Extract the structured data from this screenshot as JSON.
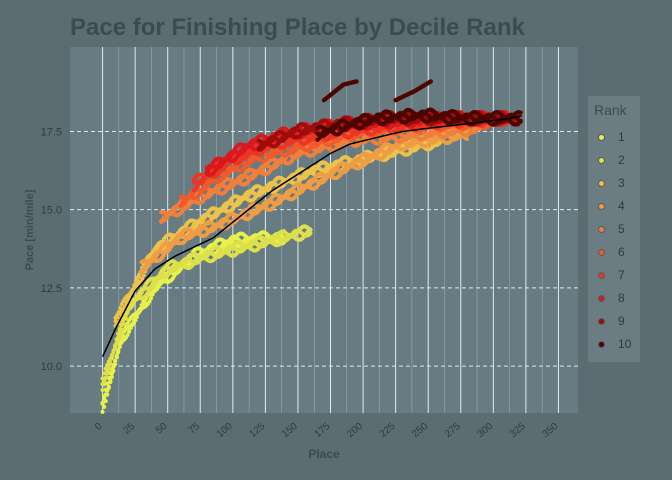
{
  "chart_data": {
    "type": "scatter",
    "title": "Pace for Finishing Place by Decile Rank",
    "xlabel": "Place",
    "ylabel": "Pace [min/mile]",
    "xlim": [
      -25,
      365
    ],
    "ylim": [
      8.5,
      20.2
    ],
    "x_ticks": [
      "0",
      "25",
      "50",
      "75",
      "100",
      "125",
      "150",
      "175",
      "200",
      "225",
      "250",
      "275",
      "300",
      "325",
      "350"
    ],
    "y_ticks": [
      "10.0",
      "12.5",
      "15.0",
      "17.5"
    ],
    "y_tick_values": [
      10.0,
      12.5,
      15.0,
      17.5
    ],
    "legend_title": "Rank",
    "legend_position": "right",
    "grid": true,
    "colors": {
      "1": "#e6f24a",
      "2": "#dde04b",
      "3": "#ecc24a",
      "4": "#ef9d44",
      "5": "#f07f3c",
      "6": "#f05a2c",
      "7": "#ee3522",
      "8": "#d9191e",
      "9": "#a10d0b",
      "10": "#4d0602"
    },
    "series": [
      {
        "name": "1",
        "points": [
          [
            0,
            8.8
          ],
          [
            15,
            11.0
          ],
          [
            40,
            12.6
          ],
          [
            70,
            13.6
          ],
          [
            100,
            14.1
          ],
          [
            140,
            14.2
          ]
        ]
      },
      {
        "name": "2",
        "points": [
          [
            0,
            9.5
          ],
          [
            20,
            12.0
          ],
          [
            50,
            13.2
          ],
          [
            80,
            13.6
          ],
          [
            120,
            14.0
          ],
          [
            160,
            14.4
          ]
        ]
      },
      {
        "name": "3",
        "points": [
          [
            10,
            11.5
          ],
          [
            40,
            13.8
          ],
          [
            70,
            14.6
          ],
          [
            110,
            15.5
          ],
          [
            160,
            16.3
          ],
          [
            210,
            16.8
          ],
          [
            260,
            17.3
          ]
        ]
      },
      {
        "name": "4",
        "points": [
          [
            30,
            13.2
          ],
          [
            60,
            14.2
          ],
          [
            90,
            14.6
          ],
          [
            130,
            15.3
          ],
          [
            180,
            16.3
          ],
          [
            230,
            17.2
          ],
          [
            280,
            17.5
          ]
        ]
      },
      {
        "name": "5",
        "points": [
          [
            45,
            14.8
          ],
          [
            75,
            15.5
          ],
          [
            110,
            16.1
          ],
          [
            150,
            16.9
          ],
          [
            190,
            17.3
          ],
          [
            240,
            17.5
          ],
          [
            290,
            17.7
          ]
        ]
      },
      {
        "name": "6",
        "points": [
          [
            60,
            15.3
          ],
          [
            90,
            16.2
          ],
          [
            120,
            16.8
          ],
          [
            160,
            17.2
          ],
          [
            200,
            17.6
          ],
          [
            250,
            17.8
          ],
          [
            300,
            17.9
          ]
        ]
      },
      {
        "name": "7",
        "points": [
          [
            70,
            15.9
          ],
          [
            100,
            16.7
          ],
          [
            130,
            17.2
          ],
          [
            170,
            17.5
          ],
          [
            210,
            17.7
          ],
          [
            260,
            17.9
          ],
          [
            310,
            18.0
          ]
        ]
      },
      {
        "name": "8",
        "points": [
          [
            80,
            16.3
          ],
          [
            110,
            17.1
          ],
          [
            140,
            17.5
          ],
          [
            180,
            17.8
          ],
          [
            220,
            17.9
          ],
          [
            270,
            18.0
          ],
          [
            315,
            18.0
          ]
        ]
      },
      {
        "name": "9",
        "points": [
          [
            120,
            17.1
          ],
          [
            150,
            17.6
          ],
          [
            180,
            17.8
          ],
          [
            220,
            18.0
          ],
          [
            270,
            18.0
          ],
          [
            320,
            18.0
          ]
        ]
      },
      {
        "name": "10",
        "points": [
          [
            165,
            17.5
          ],
          [
            190,
            17.8
          ],
          [
            210,
            18.0
          ],
          [
            245,
            18.1
          ],
          [
            280,
            18.0
          ],
          [
            322,
            18.0
          ],
          [
            170,
            18.5
          ],
          [
            185,
            19.0
          ],
          [
            195,
            19.1
          ],
          [
            225,
            18.5
          ],
          [
            240,
            18.8
          ],
          [
            252,
            19.1
          ]
        ]
      }
    ],
    "smooth_line": [
      [
        0,
        10.3
      ],
      [
        10,
        11.2
      ],
      [
        25,
        12.4
      ],
      [
        40,
        13.1
      ],
      [
        55,
        13.5
      ],
      [
        70,
        13.8
      ],
      [
        85,
        14.1
      ],
      [
        100,
        14.6
      ],
      [
        115,
        15.1
      ],
      [
        130,
        15.6
      ],
      [
        145,
        16.0
      ],
      [
        160,
        16.4
      ],
      [
        175,
        16.8
      ],
      [
        190,
        17.1
      ],
      [
        210,
        17.3
      ],
      [
        230,
        17.5
      ],
      [
        250,
        17.6
      ],
      [
        270,
        17.7
      ],
      [
        290,
        17.8
      ],
      [
        310,
        17.9
      ],
      [
        322,
        18.0
      ]
    ]
  }
}
